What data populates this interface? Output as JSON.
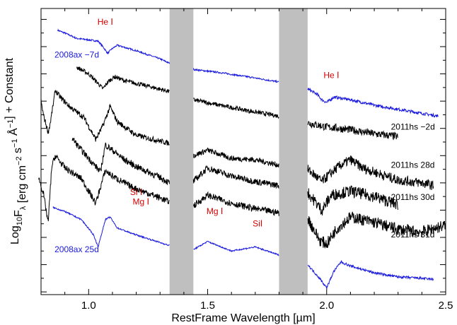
{
  "chart_data": {
    "type": "line",
    "title": "",
    "xlabel": "RestFrame Wavelength [µm]",
    "ylabel_parts": [
      "Log",
      "10",
      "F",
      "λ",
      " [erg cm",
      "−2",
      " s",
      "−1",
      " Å",
      "−1",
      "] + Constant"
    ],
    "xlim": [
      0.8,
      2.5
    ],
    "xticks": [
      {
        "value": 1.0,
        "label": "1.0"
      },
      {
        "value": 1.5,
        "label": "1.5"
      },
      {
        "value": 2.0,
        "label": "2.0"
      },
      {
        "value": 2.5,
        "label": "2.5"
      }
    ],
    "telluric_bands": [
      [
        1.34,
        1.44
      ],
      [
        1.8,
        1.92
      ]
    ],
    "colors": {
      "sn2008ax": "#1a1adf",
      "sn2011hs": "#000000",
      "lines": "#d40000",
      "band": "#bfbfbf"
    },
    "series": [
      {
        "name": "2008ax −7d",
        "color": "#1a1adf",
        "label_wl": 0.95,
        "label_y": 6.6,
        "points": [
          [
            0.87,
            7.6
          ],
          [
            0.9,
            7.5
          ],
          [
            0.95,
            7.3
          ],
          [
            1.0,
            7.25
          ],
          [
            1.04,
            7.2
          ],
          [
            1.06,
            7.0
          ],
          [
            1.08,
            6.75
          ],
          [
            1.095,
            6.9
          ],
          [
            1.12,
            7.05
          ],
          [
            1.2,
            6.85
          ],
          [
            1.3,
            6.55
          ],
          [
            1.35,
            6.35
          ],
          [
            1.45,
            6.15
          ],
          [
            1.55,
            6.05
          ],
          [
            1.7,
            5.85
          ],
          [
            1.8,
            5.7
          ],
          [
            1.92,
            5.45
          ],
          [
            1.96,
            5.25
          ],
          [
            1.98,
            5.05
          ],
          [
            2.0,
            4.95
          ],
          [
            2.03,
            5.15
          ],
          [
            2.1,
            5.05
          ],
          [
            2.2,
            4.85
          ],
          [
            2.3,
            4.7
          ],
          [
            2.4,
            4.55
          ],
          [
            2.47,
            4.45
          ]
        ],
        "noise": 0.03
      },
      {
        "name": "2011hs −2d",
        "color": "#000000",
        "label_wl": 2.27,
        "label_y": 3.95,
        "points": [
          [
            0.95,
            6.25
          ],
          [
            1.0,
            6.0
          ],
          [
            1.04,
            5.65
          ],
          [
            1.06,
            5.45
          ],
          [
            1.08,
            5.7
          ],
          [
            1.11,
            5.9
          ],
          [
            1.15,
            5.75
          ],
          [
            1.25,
            5.55
          ],
          [
            1.34,
            5.35
          ],
          [
            1.44,
            5.05
          ],
          [
            1.55,
            4.85
          ],
          [
            1.7,
            4.6
          ],
          [
            1.8,
            4.45
          ],
          [
            1.92,
            4.2
          ],
          [
            2.0,
            4.05
          ],
          [
            2.1,
            3.95
          ],
          [
            2.2,
            3.8
          ],
          [
            2.3,
            3.7
          ]
        ],
        "noise": 0.08
      },
      {
        "name": "2011hs 28d",
        "color": "#000000",
        "label_wl": 2.27,
        "label_y": 2.55,
        "points": [
          [
            0.8,
            5.0
          ],
          [
            0.81,
            4.5
          ],
          [
            0.83,
            3.85
          ],
          [
            0.84,
            4.25
          ],
          [
            0.86,
            5.4
          ],
          [
            0.88,
            5.15
          ],
          [
            0.92,
            4.8
          ],
          [
            0.98,
            4.4
          ],
          [
            1.03,
            3.6
          ],
          [
            1.06,
            4.1
          ],
          [
            1.09,
            4.8
          ],
          [
            1.12,
            4.25
          ],
          [
            1.2,
            3.75
          ],
          [
            1.27,
            3.6
          ],
          [
            1.34,
            3.45
          ],
          [
            1.44,
            3.0
          ],
          [
            1.5,
            3.2
          ],
          [
            1.6,
            2.9
          ],
          [
            1.7,
            2.85
          ],
          [
            1.8,
            2.65
          ],
          [
            1.92,
            2.5
          ],
          [
            1.98,
            2.05
          ],
          [
            2.01,
            2.3
          ],
          [
            2.05,
            2.6
          ],
          [
            2.1,
            2.85
          ],
          [
            2.15,
            2.55
          ],
          [
            2.25,
            2.25
          ],
          [
            2.3,
            2.1
          ],
          [
            2.4,
            2.0
          ],
          [
            2.45,
            1.9
          ]
        ],
        "noise": 0.1
      },
      {
        "name": "2011hs 30d",
        "color": "#000000",
        "label_wl": 2.27,
        "label_y": 1.38,
        "points": [
          [
            0.93,
            3.65
          ],
          [
            0.96,
            3.3
          ],
          [
            1.0,
            2.9
          ],
          [
            1.05,
            2.4
          ],
          [
            1.07,
            3.4
          ],
          [
            1.1,
            3.2
          ],
          [
            1.15,
            2.85
          ],
          [
            1.2,
            2.6
          ],
          [
            1.3,
            2.2
          ],
          [
            1.34,
            2.0
          ],
          [
            1.44,
            2.05
          ],
          [
            1.5,
            2.55
          ],
          [
            1.6,
            2.25
          ],
          [
            1.7,
            2.05
          ],
          [
            1.8,
            1.9
          ],
          [
            1.92,
            1.65
          ],
          [
            1.98,
            1.0
          ],
          [
            2.02,
            1.55
          ],
          [
            2.1,
            1.7
          ],
          [
            2.2,
            1.5
          ],
          [
            2.3,
            1.2
          ]
        ],
        "noise": 0.12
      },
      {
        "name": "2011hs 31d",
        "color": "#000000",
        "label_wl": 2.27,
        "label_y": 0.0,
        "points": [
          [
            0.79,
            2.2
          ],
          [
            0.81,
            1.6
          ],
          [
            0.83,
            0.55
          ],
          [
            0.845,
            2.6
          ],
          [
            0.86,
            3.0
          ],
          [
            0.9,
            2.55
          ],
          [
            0.97,
            2.15
          ],
          [
            1.03,
            1.25
          ],
          [
            1.07,
            2.45
          ],
          [
            1.1,
            2.25
          ],
          [
            1.18,
            1.85
          ],
          [
            1.3,
            1.45
          ],
          [
            1.34,
            1.3
          ],
          [
            1.44,
            1.15
          ],
          [
            1.5,
            1.55
          ],
          [
            1.6,
            1.25
          ],
          [
            1.7,
            1.05
          ],
          [
            1.8,
            0.9
          ],
          [
            1.92,
            0.7
          ],
          [
            1.97,
            -0.1
          ],
          [
            2.0,
            -0.25
          ],
          [
            2.04,
            0.3
          ],
          [
            2.1,
            0.75
          ],
          [
            2.2,
            0.55
          ],
          [
            2.3,
            0.3
          ],
          [
            2.4,
            0.2
          ],
          [
            2.5,
            0.45
          ]
        ],
        "noise": 0.12
      },
      {
        "name": "2008ax 25d",
        "color": "#1a1adf",
        "label_wl": 0.95,
        "label_y": -0.55,
        "points": [
          [
            0.85,
            1.1
          ],
          [
            0.9,
            0.95
          ],
          [
            0.97,
            0.65
          ],
          [
            1.02,
            0.1
          ],
          [
            1.04,
            -0.35
          ],
          [
            1.07,
            0.65
          ],
          [
            1.09,
            0.75
          ],
          [
            1.12,
            0.35
          ],
          [
            1.18,
            0.15
          ],
          [
            1.25,
            -0.05
          ],
          [
            1.34,
            -0.3
          ],
          [
            1.44,
            -0.45
          ],
          [
            1.5,
            -0.15
          ],
          [
            1.6,
            -0.5
          ],
          [
            1.7,
            -0.35
          ],
          [
            1.8,
            -0.65
          ],
          [
            1.92,
            -1.0
          ],
          [
            1.97,
            -1.5
          ],
          [
            2.0,
            -1.85
          ],
          [
            2.03,
            -1.25
          ],
          [
            2.06,
            -0.9
          ],
          [
            2.1,
            -1.05
          ],
          [
            2.2,
            -1.3
          ],
          [
            2.3,
            -1.45
          ],
          [
            2.4,
            -1.5
          ],
          [
            2.45,
            -1.55
          ]
        ],
        "noise": 0.025
      }
    ],
    "line_ids": [
      {
        "wl": 1.07,
        "y": 7.8,
        "text": "He Ⅰ"
      },
      {
        "wl": 2.02,
        "y": 5.85,
        "text": "He Ⅰ"
      },
      {
        "wl": 1.2,
        "y": 1.55,
        "text": "Si Ⅰ"
      },
      {
        "wl": 1.22,
        "y": 1.2,
        "text": "Mg Ⅰ"
      },
      {
        "wl": 1.53,
        "y": 0.85,
        "text": "Mg Ⅰ"
      },
      {
        "wl": 1.71,
        "y": 0.4,
        "text": "SiⅠ"
      }
    ]
  }
}
